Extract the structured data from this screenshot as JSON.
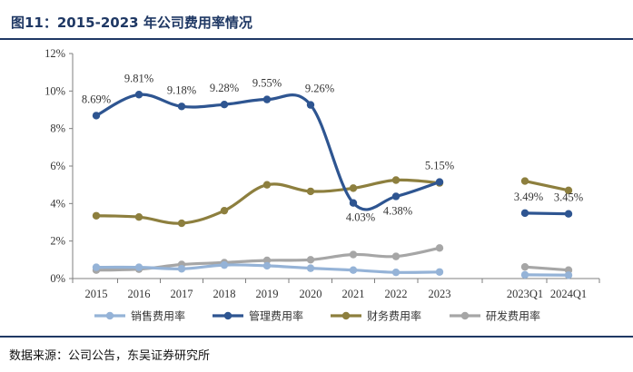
{
  "title": "图11：2015-2023 年公司费用率情况",
  "source": "数据来源：公司公告，东吴证券研究所",
  "chart_data": {
    "type": "line",
    "categories": [
      "2015",
      "2016",
      "2017",
      "2018",
      "2019",
      "2020",
      "2021",
      "2022",
      "2023",
      "2023Q1",
      "2024Q1"
    ],
    "ylim": [
      0,
      12
    ],
    "yticks": [
      "0%",
      "2%",
      "4%",
      "6%",
      "8%",
      "10%",
      "12%"
    ],
    "ytick_values": [
      0,
      2,
      4,
      6,
      8,
      10,
      12
    ],
    "series": [
      {
        "name": "销售费用率",
        "color": "#95b3d7",
        "values": [
          0.6,
          0.6,
          0.52,
          0.72,
          0.68,
          0.55,
          0.45,
          0.33,
          0.35,
          0.2,
          0.18
        ]
      },
      {
        "name": "管理费用率",
        "color": "#2e5591",
        "values": [
          8.69,
          9.81,
          9.18,
          9.28,
          9.55,
          9.26,
          4.03,
          4.38,
          5.15,
          3.49,
          3.45
        ]
      },
      {
        "name": "财务费用率",
        "color": "#8d7f3e",
        "values": [
          3.35,
          3.28,
          2.95,
          3.62,
          5.0,
          4.65,
          4.82,
          5.25,
          5.1,
          5.2,
          4.7
        ]
      },
      {
        "name": "研发费用率",
        "color": "#a6a6a6",
        "values": [
          0.45,
          0.5,
          0.75,
          0.85,
          0.97,
          1.0,
          1.28,
          1.18,
          1.63,
          0.62,
          0.45
        ]
      }
    ],
    "segments": [
      [
        0,
        8
      ],
      [
        9,
        10
      ]
    ],
    "data_labels": [
      {
        "series": 1,
        "index": 0,
        "text": "8.69%"
      },
      {
        "series": 1,
        "index": 1,
        "text": "9.81%"
      },
      {
        "series": 1,
        "index": 2,
        "text": "9.18%"
      },
      {
        "series": 1,
        "index": 3,
        "text": "9.28%"
      },
      {
        "series": 1,
        "index": 4,
        "text": "9.55%"
      },
      {
        "series": 1,
        "index": 5,
        "text": "9.26%"
      },
      {
        "series": 1,
        "index": 6,
        "text": "4.03%"
      },
      {
        "series": 1,
        "index": 7,
        "text": "4.38%"
      },
      {
        "series": 1,
        "index": 8,
        "text": "5.15%"
      },
      {
        "series": 1,
        "index": 9,
        "text": "3.49%"
      },
      {
        "series": 1,
        "index": 10,
        "text": "3.45%"
      }
    ],
    "legend": [
      "销售费用率",
      "管理费用率",
      "财务费用率",
      "研发费用率"
    ]
  }
}
